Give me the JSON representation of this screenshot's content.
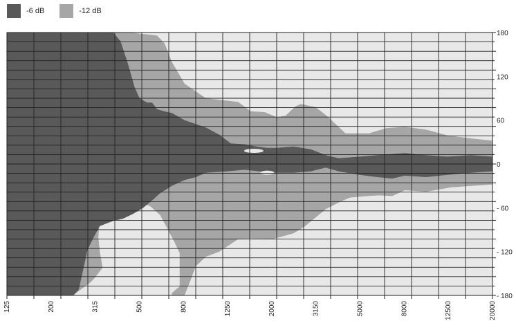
{
  "legend": [
    {
      "label": "-6 dB",
      "color": "#595959"
    },
    {
      "label": "-12 dB",
      "color": "#a6a6a6"
    }
  ],
  "chart_data": {
    "type": "area",
    "title": "",
    "xlabel": "",
    "ylabel": "",
    "x_scale": "log",
    "x_ticks": [
      "125",
      "200",
      "315",
      "500",
      "800",
      "1250",
      "2000",
      "3150",
      "5000",
      "8000",
      "12500",
      "20000"
    ],
    "y_ticks": [
      "180",
      "120",
      "60",
      "0",
      "- 60",
      "- 120",
      "- 180"
    ],
    "xlim": [
      125,
      20000
    ],
    "ylim": [
      -180,
      180
    ],
    "grid": true,
    "legend_position": "top-left",
    "background_color": "#e8e8e8",
    "series": [
      {
        "name": "-12 dB",
        "color": "#a6a6a6",
        "upper": [
          [
            125,
            180
          ],
          [
            450,
            180
          ],
          [
            600,
            176
          ],
          [
            650,
            165
          ],
          [
            700,
            140
          ],
          [
            800,
            110
          ],
          [
            1000,
            90
          ],
          [
            1400,
            85
          ],
          [
            1600,
            72
          ],
          [
            1850,
            71
          ],
          [
            2100,
            64
          ],
          [
            2300,
            66
          ],
          [
            2550,
            79
          ],
          [
            2700,
            82
          ],
          [
            3150,
            78
          ],
          [
            3600,
            64
          ],
          [
            4300,
            42
          ],
          [
            5500,
            42
          ],
          [
            6600,
            49
          ],
          [
            8000,
            51
          ],
          [
            10000,
            47
          ],
          [
            12500,
            39
          ],
          [
            16000,
            35
          ],
          [
            20000,
            32
          ]
        ],
        "lower": [
          [
            125,
            -180
          ],
          [
            200,
            -180
          ],
          [
            250,
            -180
          ],
          [
            270,
            -172
          ],
          [
            300,
            -162
          ],
          [
            315,
            -155
          ],
          [
            340,
            -142
          ],
          [
            330,
            -120
          ],
          [
            325,
            -100
          ],
          [
            330,
            -74
          ],
          [
            365,
            -71
          ],
          [
            400,
            -64
          ],
          [
            440,
            -54
          ],
          [
            500,
            -52
          ],
          [
            560,
            -58
          ],
          [
            620,
            -70
          ],
          [
            670,
            -89
          ],
          [
            720,
            -107
          ],
          [
            760,
            -122
          ],
          [
            760,
            -151
          ],
          [
            760,
            -168
          ],
          [
            730,
            -172
          ],
          [
            700,
            -177
          ],
          [
            700,
            -180
          ],
          [
            800,
            -180
          ],
          [
            850,
            -160
          ],
          [
            900,
            -140
          ],
          [
            1000,
            -127
          ],
          [
            1150,
            -120
          ],
          [
            1400,
            -103
          ],
          [
            1600,
            -102
          ],
          [
            2000,
            -103
          ],
          [
            2500,
            -95
          ],
          [
            2800,
            -86
          ],
          [
            3500,
            -62
          ],
          [
            4000,
            -53
          ],
          [
            4500,
            -46
          ],
          [
            5400,
            -44
          ],
          [
            6100,
            -43
          ],
          [
            7000,
            -44
          ],
          [
            8000,
            -36
          ],
          [
            10000,
            -38
          ],
          [
            13000,
            -32
          ],
          [
            20000,
            -28
          ]
        ]
      },
      {
        "name": "-6 dB",
        "color": "#595959",
        "upper": [
          [
            125,
            180
          ],
          [
            380,
            180
          ],
          [
            410,
            168
          ],
          [
            440,
            140
          ],
          [
            475,
            105
          ],
          [
            500,
            90
          ],
          [
            540,
            84
          ],
          [
            570,
            84
          ],
          [
            600,
            75
          ],
          [
            650,
            72
          ],
          [
            700,
            70
          ],
          [
            800,
            60
          ],
          [
            1000,
            50
          ],
          [
            1150,
            40
          ],
          [
            1300,
            28
          ],
          [
            1500,
            27
          ],
          [
            1700,
            24
          ],
          [
            1900,
            22
          ],
          [
            2100,
            22
          ],
          [
            2500,
            24
          ],
          [
            3000,
            20
          ],
          [
            3500,
            12
          ],
          [
            4000,
            8
          ],
          [
            5000,
            10
          ],
          [
            6000,
            12
          ],
          [
            8000,
            15
          ],
          [
            10000,
            12
          ],
          [
            12500,
            10
          ],
          [
            16000,
            12
          ],
          [
            20000,
            10
          ]
        ],
        "lower": [
          [
            125,
            -180
          ],
          [
            250,
            -180
          ],
          [
            265,
            -172
          ],
          [
            275,
            -150
          ],
          [
            290,
            -118
          ],
          [
            310,
            -100
          ],
          [
            330,
            -85
          ],
          [
            380,
            -78
          ],
          [
            420,
            -75
          ],
          [
            470,
            -68
          ],
          [
            520,
            -60
          ],
          [
            570,
            -50
          ],
          [
            620,
            -40
          ],
          [
            700,
            -30
          ],
          [
            800,
            -22
          ],
          [
            900,
            -18
          ],
          [
            1000,
            -12
          ],
          [
            1250,
            -10
          ],
          [
            1500,
            -8
          ],
          [
            2000,
            -12
          ],
          [
            2500,
            -12
          ],
          [
            3000,
            -10
          ],
          [
            3500,
            -5
          ],
          [
            4000,
            -10
          ],
          [
            5000,
            -15
          ],
          [
            6000,
            -18
          ],
          [
            7000,
            -20
          ],
          [
            8000,
            -16
          ],
          [
            10000,
            -18
          ],
          [
            12500,
            -15
          ],
          [
            16000,
            -12
          ],
          [
            20000,
            -10
          ]
        ]
      }
    ]
  }
}
